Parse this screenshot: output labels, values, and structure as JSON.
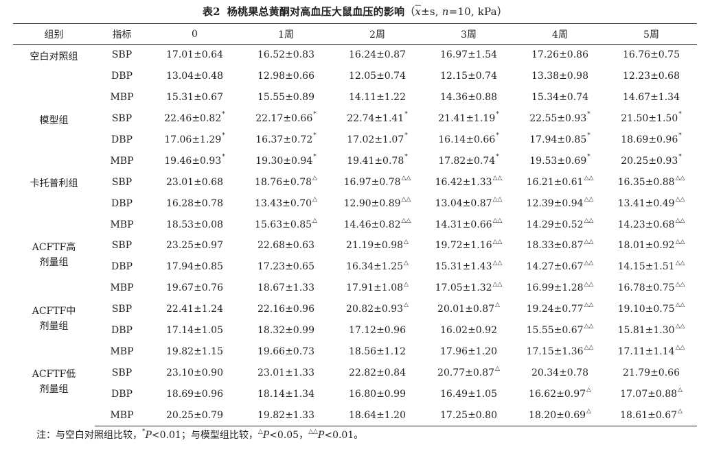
{
  "caption": {
    "number": "表2",
    "title": "杨桃果总黄酮对高血压大鼠血压的影响",
    "params_prefix": "（",
    "mean_symbol": "x",
    "pm_s": "±s, ",
    "n_symbol": "n",
    "n_value": "=10, kPa）"
  },
  "headers": [
    "组别",
    "指标",
    "0",
    "1周",
    "2周",
    "3周",
    "4周",
    "5周"
  ],
  "groups": [
    {
      "name_lines": [
        "空白对照组"
      ],
      "rows": [
        {
          "indicator": "SBP",
          "cells": [
            [
              "17.01±0.64",
              ""
            ],
            [
              "16.52±0.83",
              ""
            ],
            [
              "16.24±0.87",
              ""
            ],
            [
              "16.97±1.54",
              ""
            ],
            [
              "17.26±0.86",
              ""
            ],
            [
              "16.76±0.75",
              ""
            ]
          ]
        },
        {
          "indicator": "DBP",
          "cells": [
            [
              "13.04±0.48",
              ""
            ],
            [
              "12.98±0.66",
              ""
            ],
            [
              "12.05±0.74",
              ""
            ],
            [
              "12.15±0.74",
              ""
            ],
            [
              "13.38±0.98",
              ""
            ],
            [
              "12.23±0.68",
              ""
            ]
          ]
        },
        {
          "indicator": "MBP",
          "cells": [
            [
              "15.31±0.67",
              ""
            ],
            [
              "15.55±0.89",
              ""
            ],
            [
              "14.11±1.22",
              ""
            ],
            [
              "14.36±0.88",
              ""
            ],
            [
              "15.34±0.74",
              ""
            ],
            [
              "14.67±1.34",
              ""
            ]
          ]
        }
      ]
    },
    {
      "name_lines": [
        "模型组"
      ],
      "rows": [
        {
          "indicator": "SBP",
          "cells": [
            [
              "22.46±0.82",
              "*"
            ],
            [
              "22.17±0.66",
              "*"
            ],
            [
              "22.74±1.41",
              "*"
            ],
            [
              "21.41±1.19",
              "*"
            ],
            [
              "22.55±0.93",
              "*"
            ],
            [
              "21.50±1.50",
              "*"
            ]
          ]
        },
        {
          "indicator": "DBP",
          "cells": [
            [
              "17.06±1.29",
              "*"
            ],
            [
              "16.37±0.72",
              "*"
            ],
            [
              "17.02±1.07",
              "*"
            ],
            [
              "16.14±0.66",
              "*"
            ],
            [
              "17.94±0.85",
              "*"
            ],
            [
              "18.69±0.96",
              "*"
            ]
          ]
        },
        {
          "indicator": "MBP",
          "cells": [
            [
              "19.46±0.93",
              "*"
            ],
            [
              "19.30±0.94",
              "*"
            ],
            [
              "19.41±0.78",
              "*"
            ],
            [
              "17.82±0.74",
              "*"
            ],
            [
              "19.53±0.69",
              "*"
            ],
            [
              "20.25±0.93",
              "*"
            ]
          ]
        }
      ]
    },
    {
      "name_lines": [
        "卡托普利组"
      ],
      "rows": [
        {
          "indicator": "SBP",
          "cells": [
            [
              "23.01±0.68",
              ""
            ],
            [
              "18.76±0.78",
              "△"
            ],
            [
              "16.97±0.78",
              "△△"
            ],
            [
              "16.42±1.33",
              "△△"
            ],
            [
              "16.21±0.61",
              "△△"
            ],
            [
              "16.35±0.88",
              "△△"
            ]
          ]
        },
        {
          "indicator": "DBP",
          "cells": [
            [
              "16.28±0.78",
              ""
            ],
            [
              "13.43±0.70",
              "△"
            ],
            [
              "12.90±0.89",
              "△△"
            ],
            [
              "13.04±0.87",
              "△△"
            ],
            [
              "12.39±0.94",
              "△△"
            ],
            [
              "13.41±0.49",
              "△△"
            ]
          ]
        },
        {
          "indicator": "MBP",
          "cells": [
            [
              "18.53±0.08",
              ""
            ],
            [
              "15.63±0.85",
              "△"
            ],
            [
              "14.46±0.82",
              "△△"
            ],
            [
              "14.31±0.66",
              "△△"
            ],
            [
              "14.29±0.52",
              "△△"
            ],
            [
              "14.23±0.68",
              "△△"
            ]
          ]
        }
      ]
    },
    {
      "name_lines": [
        "ACFTF高",
        "剂量组"
      ],
      "rows": [
        {
          "indicator": "SBP",
          "cells": [
            [
              "23.25±0.97",
              ""
            ],
            [
              "22.68±0.63",
              ""
            ],
            [
              "21.19±0.98",
              "△"
            ],
            [
              "19.72±1.16",
              "△△"
            ],
            [
              "18.33±0.87",
              "△△"
            ],
            [
              "18.01±0.92",
              "△△"
            ]
          ]
        },
        {
          "indicator": "DBP",
          "cells": [
            [
              "17.94±0.85",
              ""
            ],
            [
              "17.23±0.65",
              ""
            ],
            [
              "16.34±1.25",
              "△"
            ],
            [
              "15.31±1.43",
              "△△"
            ],
            [
              "14.27±0.67",
              "△△"
            ],
            [
              "14.15±1.51",
              "△△"
            ]
          ]
        },
        {
          "indicator": "MBP",
          "cells": [
            [
              "19.67±0.76",
              ""
            ],
            [
              "18.67±1.33",
              ""
            ],
            [
              "17.91±1.08",
              "△"
            ],
            [
              "17.05±1.32",
              "△△"
            ],
            [
              "16.99±1.28",
              "△△"
            ],
            [
              "16.78±0.75",
              "△△"
            ]
          ]
        }
      ]
    },
    {
      "name_lines": [
        "ACFTF中",
        "剂量组"
      ],
      "rows": [
        {
          "indicator": "SBP",
          "cells": [
            [
              "22.41±1.24",
              ""
            ],
            [
              "22.16±0.96",
              ""
            ],
            [
              "20.82±0.93",
              "△"
            ],
            [
              "20.01±0.87",
              "△"
            ],
            [
              "19.24±0.77",
              "△△"
            ],
            [
              "19.10±0.75",
              "△△"
            ]
          ]
        },
        {
          "indicator": "DBP",
          "cells": [
            [
              "17.14±1.05",
              ""
            ],
            [
              "18.32±0.99",
              ""
            ],
            [
              "17.12±0.96",
              ""
            ],
            [
              "16.02±0.92",
              ""
            ],
            [
              "15.55±0.67",
              "△△"
            ],
            [
              "15.81±1.30",
              "△△"
            ]
          ]
        },
        {
          "indicator": "MBP",
          "cells": [
            [
              "19.82±1.15",
              ""
            ],
            [
              "19.66±0.73",
              ""
            ],
            [
              "18.56±1.12",
              ""
            ],
            [
              "17.96±1.20",
              ""
            ],
            [
              "17.15±1.36",
              "△△"
            ],
            [
              "17.11±1.14",
              "△△"
            ]
          ]
        }
      ]
    },
    {
      "name_lines": [
        "ACFTF低",
        "剂量组"
      ],
      "rows": [
        {
          "indicator": "SBP",
          "cells": [
            [
              "23.10±0.90",
              ""
            ],
            [
              "23.01±1.33",
              ""
            ],
            [
              "22.82±0.84",
              ""
            ],
            [
              "20.77±0.87",
              "△"
            ],
            [
              "20.34±0.78",
              ""
            ],
            [
              "21.79±0.66",
              ""
            ]
          ]
        },
        {
          "indicator": "DBP",
          "cells": [
            [
              "18.69±0.96",
              ""
            ],
            [
              "18.14±1.34",
              ""
            ],
            [
              "16.80±0.99",
              ""
            ],
            [
              "16.49±1.05",
              ""
            ],
            [
              "16.62±0.97",
              "△"
            ],
            [
              "17.07±0.88",
              "△"
            ]
          ]
        },
        {
          "indicator": "MBP",
          "cells": [
            [
              "20.25±0.79",
              ""
            ],
            [
              "19.82±1.33",
              ""
            ],
            [
              "18.64±1.20",
              ""
            ],
            [
              "17.25±0.80",
              ""
            ],
            [
              "18.20±0.69",
              "△"
            ],
            [
              "18.61±0.67",
              "△"
            ]
          ]
        }
      ]
    }
  ],
  "note": {
    "prefix": "注：与空白对照组比较，",
    "star": "*",
    "p": "P",
    "star_threshold": "<0.01；与模型组比较，",
    "tri": "△",
    "tri_threshold": "<0.05，",
    "tri2": "△△",
    "tri2_threshold": "<0.01。"
  }
}
